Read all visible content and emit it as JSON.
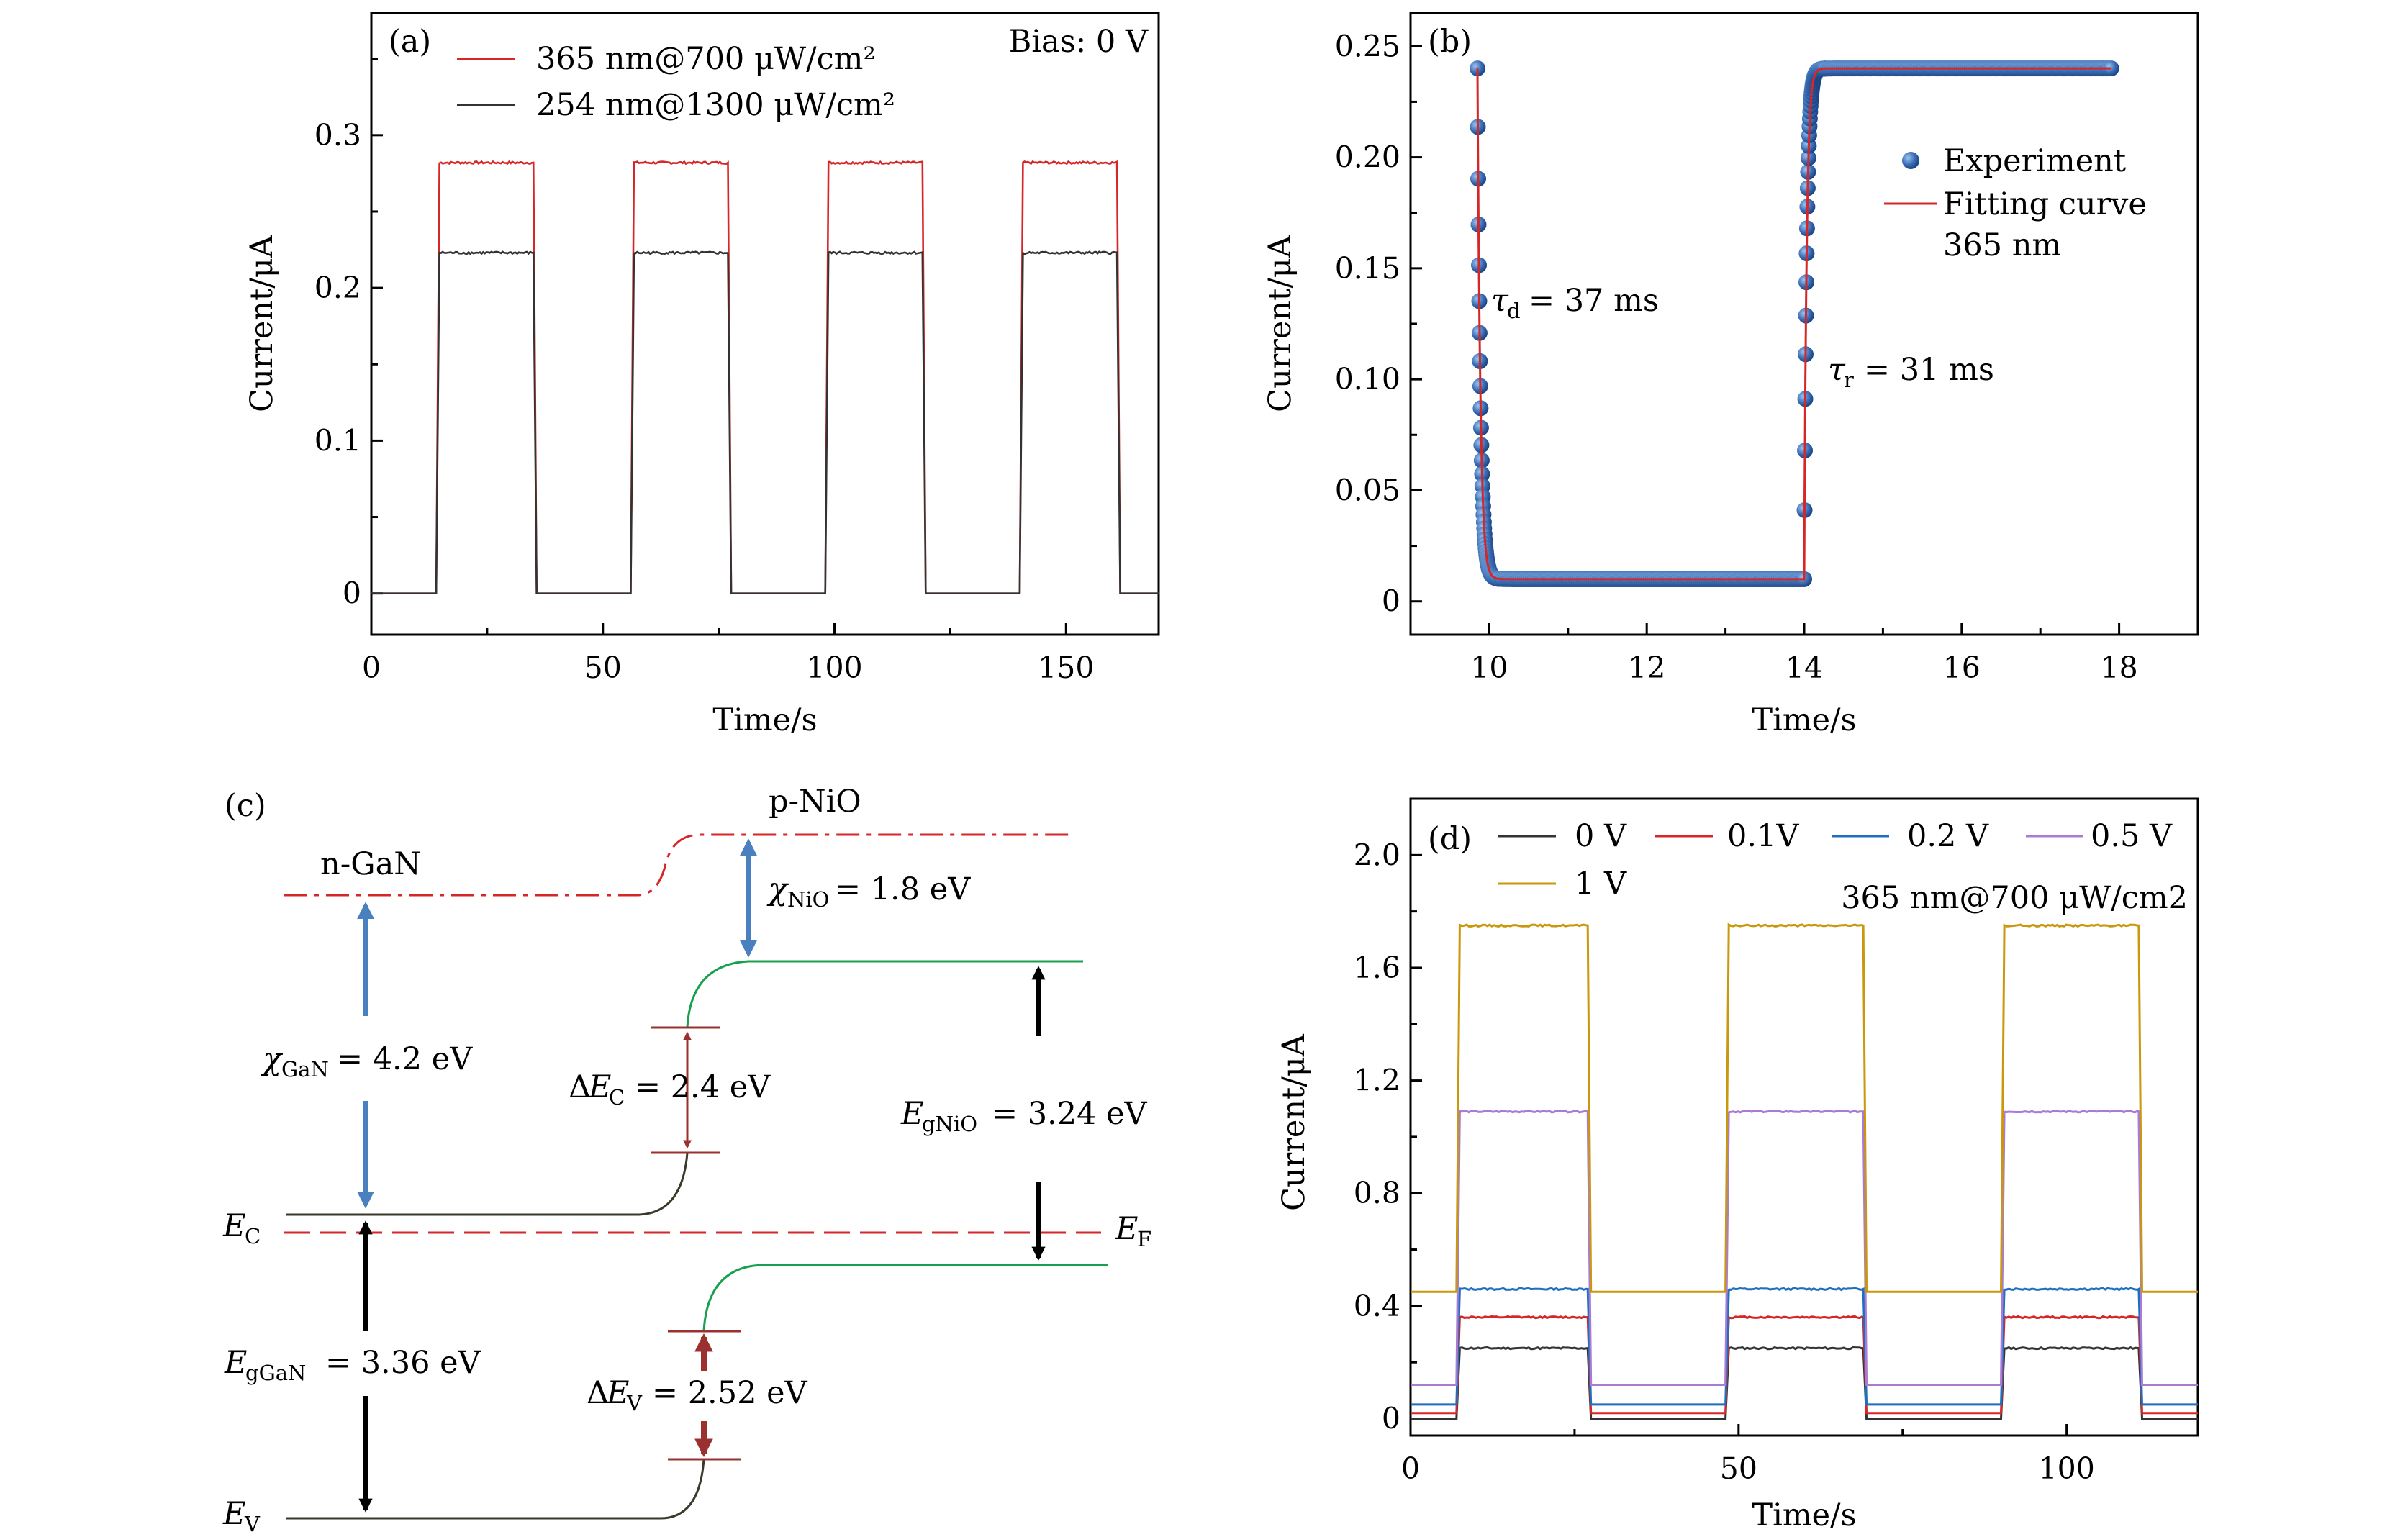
{
  "chart_data": [
    {
      "panel": "(a)",
      "type": "line",
      "xlabel": "Time/s",
      "ylabel": "Current/μA",
      "annotation": "Bias: 0 V",
      "xlim": [
        0,
        170
      ],
      "ylim": [
        -0.027,
        0.38
      ],
      "xticks": [
        0,
        50,
        100,
        150
      ],
      "yticks": [
        0,
        0.1,
        0.2,
        0.3
      ],
      "ytick_labels": [
        "0",
        "0.1",
        "0.2",
        "0.3"
      ],
      "legend": "top-left",
      "pulses": [
        [
          14,
          35
        ],
        [
          56,
          77
        ],
        [
          98,
          119
        ],
        [
          140,
          161
        ]
      ],
      "series": [
        {
          "name": "365 nm@700 μW/cm²",
          "color": "#d62728",
          "on": 0.282,
          "off": 0.0
        },
        {
          "name": "254 nm@1300 μW/cm²",
          "color": "#333333",
          "on": 0.223,
          "off": 0.0
        }
      ]
    },
    {
      "panel": "(b)",
      "type": "scatter",
      "xlabel": "Time/s",
      "ylabel": "Current/μA",
      "xlim": [
        9,
        19
      ],
      "ylim": [
        -0.015,
        0.265
      ],
      "xticks": [
        10,
        12,
        14,
        16,
        18
      ],
      "yticks": [
        0,
        0.05,
        0.1,
        0.15,
        0.2,
        0.25
      ],
      "ytick_labels": [
        "0",
        "0.05",
        "0.10",
        "0.15",
        "0.20",
        "0.25"
      ],
      "legend": "right",
      "legend_entries": [
        "Experiment",
        "Fitting curve",
        "365 nm"
      ],
      "annotations": {
        "tau_d": "= 37 ms",
        "tau_r": "= 31 ms"
      },
      "decay": {
        "t_start": 9.85,
        "tau_s": 0.037,
        "i_max": 0.24,
        "i_min": 0.01
      },
      "rise": {
        "t_start": 14.0,
        "tau_s": 0.031,
        "i_max": 0.24,
        "i_min": 0.01
      },
      "x_end": 17.9,
      "series": [
        {
          "name": "Experiment",
          "color": "#3d6fb6",
          "kind": "scatter"
        },
        {
          "name": "Fitting curve",
          "color": "#d62728",
          "kind": "line"
        }
      ]
    },
    {
      "panel": "(d)",
      "type": "line",
      "xlabel": "Time/s",
      "ylabel": "Current/μA",
      "annotation": "365 nm@700 μW/cm2",
      "xlim": [
        0,
        120
      ],
      "ylim": [
        -0.06,
        2.2
      ],
      "xticks": [
        0,
        50,
        100
      ],
      "yticks": [
        0,
        0.4,
        0.8,
        1.2,
        1.6,
        2.0
      ],
      "ytick_labels": [
        "0",
        "0.4",
        "0.8",
        "1.2",
        "1.6",
        "2.0"
      ],
      "legend": "top",
      "pulses": [
        [
          7,
          27
        ],
        [
          48,
          69
        ],
        [
          90,
          111
        ]
      ],
      "series": [
        {
          "name": "0 V",
          "color": "#333333",
          "on": 0.25,
          "off": 0.0
        },
        {
          "name": "0.1V",
          "color": "#d62728",
          "on": 0.36,
          "off": 0.02
        },
        {
          "name": "0.2 V",
          "color": "#1f6fbf",
          "on": 0.46,
          "off": 0.05
        },
        {
          "name": "0.5 V",
          "color": "#a97bd6",
          "on": 1.09,
          "off": 0.12
        },
        {
          "name": "1 V",
          "color": "#c9980c",
          "on": 1.75,
          "off": 0.45
        }
      ]
    }
  ],
  "panel_a": {
    "label": "(a)"
  },
  "panel_b": {
    "label": "(b)",
    "tau_d_sub": "d",
    "tau_r_sub": "r"
  },
  "panel_c": {
    "label": "(c)",
    "n_gan": "n-GaN",
    "p_nio": "p-NiO",
    "chi_nio_sub": "NiO",
    "chi_nio_val": "= 1.8 eV",
    "chi_gan_sub": "GaN",
    "chi_gan_val": "= 4.2 eV",
    "dec_sub": "C",
    "dec_val": "= 2.4 eV",
    "egnio_sub": "gNiO",
    "egnio_val": "= 3.24 eV",
    "ec_sub": "C",
    "ef_sub": "F",
    "eggan_sub": "gGaN",
    "eggan_val": "= 3.36 eV",
    "dev_sub": "V",
    "dev_val": "= 2.52 eV",
    "ev_sub": "V",
    "colors": {
      "vacuum": "#d62728",
      "fermi": "#d62728",
      "gan_band": "#3a3a2a",
      "nio_band": "#18a050",
      "blue_arrow": "#4a80c0",
      "red_arrow": "#9b3030",
      "black_arrow": "#000000"
    }
  },
  "panel_d": {
    "label": "(d)"
  }
}
